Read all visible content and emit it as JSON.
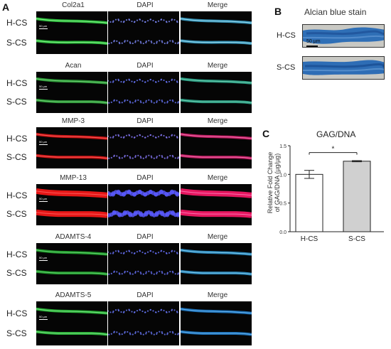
{
  "panel_a": {
    "letter": "A",
    "row_labels": {
      "top": "H-CS",
      "bottom": "S-CS"
    },
    "scale_text": "50 µm",
    "blocks": [
      {
        "markers": [
          "Col2a1",
          "DAPI",
          "Merge"
        ]
      },
      {
        "markers": [
          "Acan",
          "DAPI",
          "Merge"
        ]
      },
      {
        "markers": [
          "MMP-3",
          "DAPI",
          "Merge"
        ]
      },
      {
        "markers": [
          "MMP-13",
          "DAPI",
          "Merge"
        ]
      },
      {
        "markers": [
          "ADAMTS-4",
          "DAPI",
          "Merge"
        ]
      },
      {
        "markers": [
          "ADAMTS-5",
          "DAPI",
          "Merge"
        ]
      }
    ]
  },
  "panel_b": {
    "letter": "B",
    "title": "Alcian blue stain",
    "row_labels": [
      "H-CS",
      "S-CS"
    ],
    "scale_text": "50 µm"
  },
  "panel_c": {
    "letter": "C",
    "title": "GAG/DNA",
    "ylabel_line1": "Relative Fold Change",
    "ylabel_line2": "of GAG/DNA (µg/µg)",
    "significance": "*"
  },
  "chart_data": {
    "type": "bar",
    "title": "GAG/DNA",
    "ylabel": "Relative Fold Change of GAG/DNA (µg/µg)",
    "categories": [
      "H-CS",
      "S-CS"
    ],
    "values": [
      1.0,
      1.23
    ],
    "errors": [
      0.07,
      0.01
    ],
    "bar_colors": [
      "#ffffff",
      "#d0d0d0"
    ],
    "ylim": [
      0.0,
      1.5
    ],
    "yticks": [
      "0.0",
      "0.5",
      "1.0",
      "1.5"
    ],
    "annotation": "*"
  }
}
